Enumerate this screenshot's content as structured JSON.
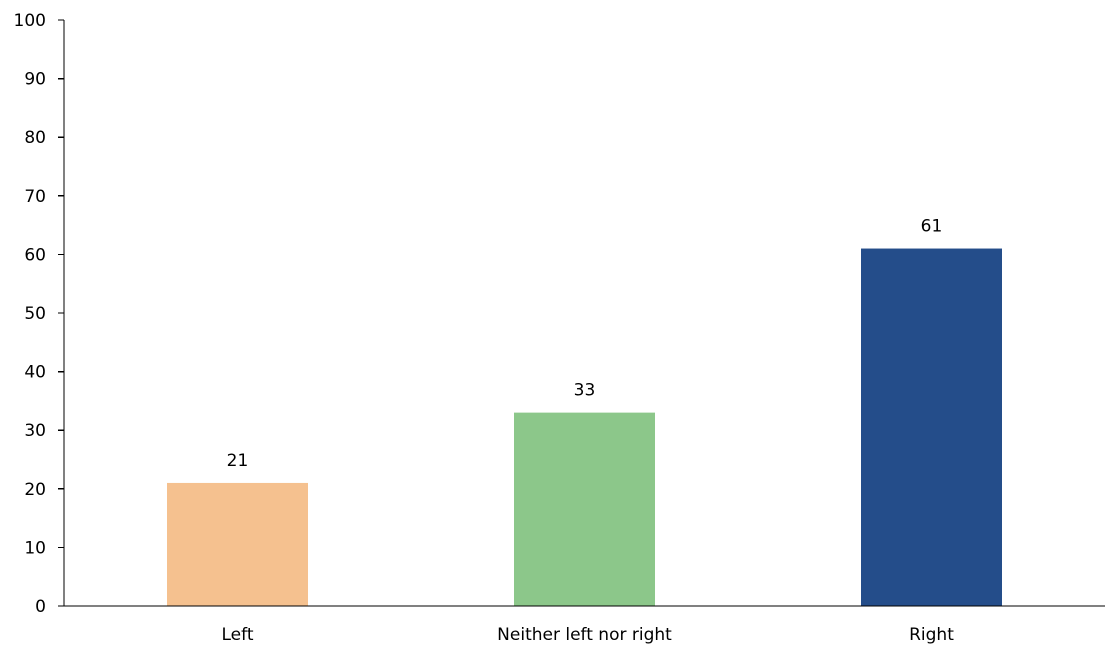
{
  "chart_data": {
    "type": "bar",
    "categories": [
      "Left",
      "Neither left nor right",
      "Right"
    ],
    "values": [
      21,
      33,
      61
    ],
    "data_labels": [
      "21",
      "33",
      "61"
    ],
    "colors": [
      "#f5c18f",
      "#8cc78a",
      "#244d8a"
    ],
    "title": "",
    "xlabel": "",
    "ylabel": "",
    "ylim": [
      0,
      100
    ],
    "yticks": [
      "0",
      "10",
      "20",
      "30",
      "40",
      "50",
      "60",
      "70",
      "80",
      "90",
      "100"
    ],
    "grid": false,
    "legend": "none"
  }
}
